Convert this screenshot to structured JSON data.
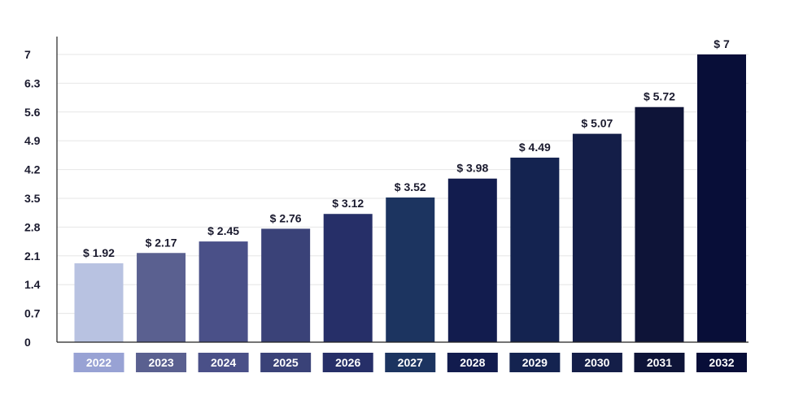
{
  "chart_data": {
    "type": "bar",
    "title": "",
    "xlabel": "",
    "ylabel": "",
    "categories": [
      "2022",
      "2023",
      "2024",
      "2025",
      "2026",
      "2027",
      "2028",
      "2029",
      "2030",
      "2031",
      "2032"
    ],
    "values": [
      1.92,
      2.17,
      2.45,
      2.76,
      3.12,
      3.52,
      3.98,
      4.49,
      5.07,
      5.72,
      7
    ],
    "value_labels": [
      "$ 1.92",
      "$ 2.17",
      "$ 2.45",
      "$ 2.76",
      "$ 3.12",
      "$ 3.52",
      "$ 3.98",
      "$ 4.49",
      "$ 5.07",
      "$ 5.72",
      "$ 7"
    ],
    "yticks": [
      "0",
      "0.7",
      "1.4",
      "2.1",
      "2.8",
      "3.5",
      "4.2",
      "4.9",
      "5.6",
      "6.3",
      "7"
    ],
    "ylim": [
      0,
      7
    ],
    "grid": true,
    "legend": "none",
    "colors": [
      "#b8c2e1",
      "#5a6090",
      "#4a5088",
      "#3a4278",
      "#262f68",
      "#1c3460",
      "#121c4e",
      "#142350",
      "#141e48",
      "#0e1438",
      "#080e38"
    ]
  }
}
